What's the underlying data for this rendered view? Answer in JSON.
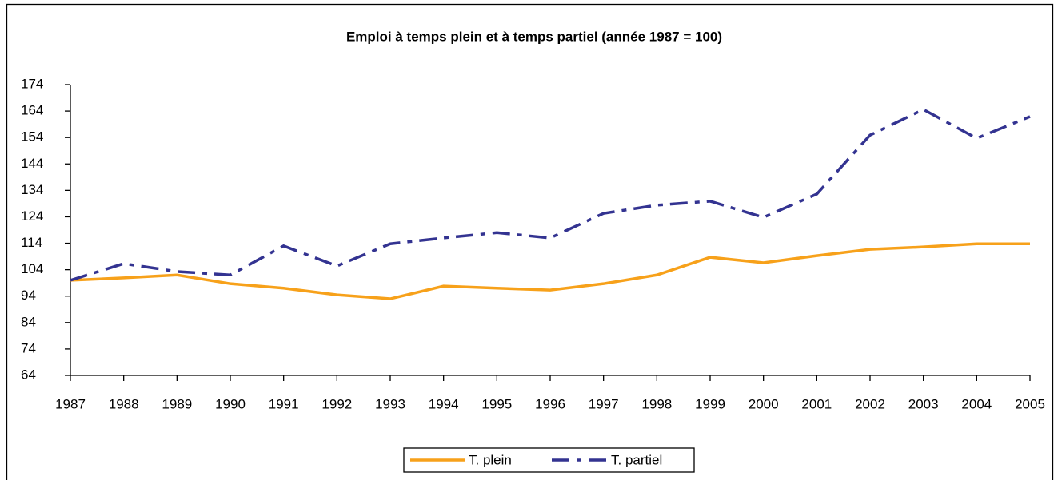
{
  "chart_data": {
    "type": "line",
    "title": "Emploi à temps plein et à temps partiel (année 1987 = 100)",
    "categories": [
      "1987",
      "1988",
      "1989",
      "1990",
      "1991",
      "1992",
      "1993",
      "1994",
      "1995",
      "1996",
      "1997",
      "1998",
      "1999",
      "2000",
      "2001",
      "2002",
      "2003",
      "2004",
      "2005"
    ],
    "series": [
      {
        "name": "T. plein",
        "color": "#f7a11a",
        "style": "solid",
        "values": [
          100,
          100.9,
          102,
          98.7,
          97,
          94.5,
          93,
          97.8,
          97,
          96.3,
          98.7,
          102,
          108.7,
          106.6,
          109.3,
          111.7,
          112.6,
          113.8,
          113.8
        ]
      },
      {
        "name": "T. partiel",
        "color": "#333391",
        "style": "dashdot",
        "values": [
          100,
          106.3,
          103.3,
          102,
          113,
          105.4,
          113.8,
          116,
          118,
          116,
          125.3,
          128.4,
          129.9,
          123.8,
          132.6,
          154.9,
          164.6,
          153.7,
          161.9
        ]
      }
    ],
    "ylim": [
      64,
      174
    ],
    "yticks": [
      64,
      74,
      84,
      94,
      104,
      114,
      124,
      134,
      144,
      154,
      164,
      174
    ],
    "grid": false,
    "legend": "bottom"
  }
}
